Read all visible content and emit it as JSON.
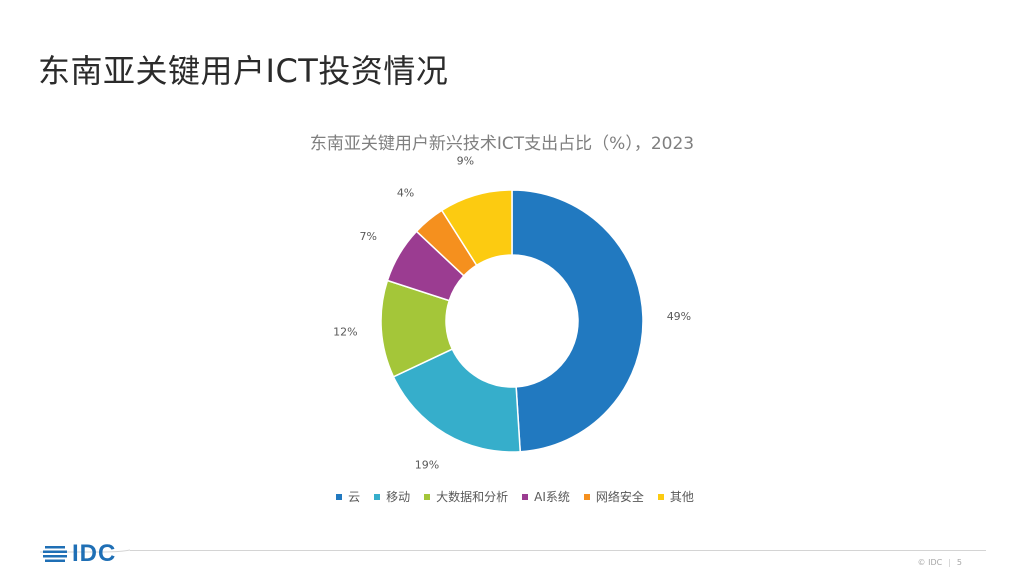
{
  "slide": {
    "title": "东南亚关键用户ICT投资情况"
  },
  "chart_data": {
    "type": "pie",
    "title": "东南亚关键用户新兴技术ICT支出占比（%），2023",
    "donut": true,
    "unit": "%",
    "legend_position": "bottom",
    "categories": [
      "云",
      "移动",
      "大数据和分析",
      "AI系统",
      "网络安全",
      "其他"
    ],
    "values": [
      49,
      19,
      12,
      7,
      4,
      9
    ],
    "labels": [
      "49%",
      "19%",
      "12%",
      "7%",
      "4%",
      "9%"
    ],
    "colors": [
      "#2179c0",
      "#36aecb",
      "#a4c639",
      "#9b3c91",
      "#f5901e",
      "#fccb11"
    ]
  },
  "footer": {
    "logo_text": "IDC",
    "copyright": "© IDC",
    "page_number": "5"
  }
}
